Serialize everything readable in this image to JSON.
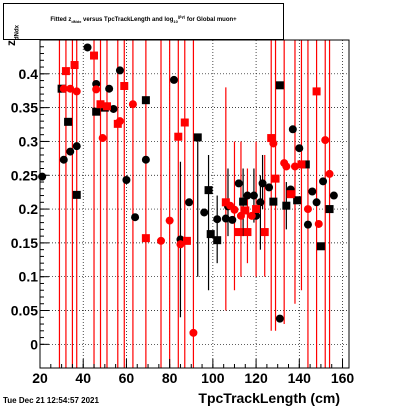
{
  "title": {
    "prefix": "Fitted",
    "z_symbol": "z",
    "z_subscript": "dNdx",
    "middle": "versus TpcTrackLength and log",
    "log_sub": "10",
    "beta_gamma": "(βγ)",
    "suffix": "for Global muon+"
  },
  "stamp": "Tue Dec 21 12:54:57 2021",
  "chart_data": {
    "type": "scatter",
    "xlabel": "TpcTrackLength (cm)",
    "ylabel": "z_{dNdx}",
    "xlim": [
      20,
      163
    ],
    "ylim": [
      -0.035,
      0.45
    ],
    "xticks": [
      20,
      40,
      60,
      80,
      100,
      120,
      140,
      160
    ],
    "yticks": [
      0,
      0.05,
      0.1,
      0.15,
      0.2,
      0.25,
      0.3,
      0.35,
      0.4
    ],
    "grid": true,
    "series": [
      {
        "color": "#000000",
        "points": [
          {
            "x": 21,
            "y": 0.248,
            "marker": "circle"
          },
          {
            "x": 30,
            "y": 0.378,
            "marker": "square"
          },
          {
            "x": 31,
            "y": 0.273,
            "marker": "circle"
          },
          {
            "x": 33,
            "y": 0.329,
            "marker": "square"
          },
          {
            "x": 34,
            "y": 0.285,
            "marker": "circle"
          },
          {
            "x": 37,
            "y": 0.293,
            "marker": "circle"
          },
          {
            "x": 37,
            "y": 0.221,
            "marker": "square"
          },
          {
            "x": 42,
            "y": 0.439,
            "marker": "circle"
          },
          {
            "x": 46,
            "y": 0.385,
            "marker": "circle"
          },
          {
            "x": 46,
            "y": 0.344,
            "marker": "square"
          },
          {
            "x": 50,
            "y": 0.35,
            "marker": "square"
          },
          {
            "x": 52,
            "y": 0.378,
            "marker": "circle"
          },
          {
            "x": 54,
            "y": 0.348,
            "marker": "circle"
          },
          {
            "x": 57,
            "y": 0.405,
            "marker": "circle"
          },
          {
            "x": 60,
            "y": 0.243,
            "marker": "circle"
          },
          {
            "x": 64,
            "y": 0.188,
            "marker": "circle"
          },
          {
            "x": 69,
            "y": 0.361,
            "marker": "square"
          },
          {
            "x": 69,
            "y": 0.273,
            "marker": "circle"
          },
          {
            "x": 82,
            "y": 0.391,
            "marker": "circle"
          },
          {
            "x": 85,
            "y": 0.155,
            "marker": "circle"
          },
          {
            "x": 89,
            "y": 0.21,
            "marker": "circle"
          },
          {
            "x": 93,
            "y": 0.306,
            "marker": "square"
          },
          {
            "x": 96,
            "y": 0.195,
            "marker": "circle"
          },
          {
            "x": 98,
            "y": 0.228,
            "marker": "square"
          },
          {
            "x": 99,
            "y": 0.163,
            "marker": "square"
          },
          {
            "x": 102,
            "y": 0.185,
            "marker": "circle"
          },
          {
            "x": 102,
            "y": 0.154,
            "marker": "square"
          },
          {
            "x": 106,
            "y": 0.186,
            "marker": "circle"
          },
          {
            "x": 107,
            "y": 0.204,
            "marker": "circle"
          },
          {
            "x": 109,
            "y": 0.184,
            "marker": "circle"
          },
          {
            "x": 112,
            "y": 0.238,
            "marker": "circle"
          },
          {
            "x": 114,
            "y": 0.211,
            "marker": "square"
          },
          {
            "x": 116,
            "y": 0.22,
            "marker": "circle"
          },
          {
            "x": 119,
            "y": 0.22,
            "marker": "circle"
          },
          {
            "x": 120,
            "y": 0.19,
            "marker": "circle"
          },
          {
            "x": 122,
            "y": 0.21,
            "marker": "circle"
          },
          {
            "x": 123,
            "y": 0.238,
            "marker": "circle"
          },
          {
            "x": 126,
            "y": 0.232,
            "marker": "circle"
          },
          {
            "x": 128,
            "y": 0.211,
            "marker": "square"
          },
          {
            "x": 131,
            "y": 0.038,
            "marker": "circle"
          },
          {
            "x": 131,
            "y": 0.383,
            "marker": "square"
          },
          {
            "x": 134,
            "y": 0.205,
            "marker": "square"
          },
          {
            "x": 136,
            "y": 0.229,
            "marker": "circle"
          },
          {
            "x": 137,
            "y": 0.318,
            "marker": "circle"
          },
          {
            "x": 139,
            "y": 0.213,
            "marker": "square"
          },
          {
            "x": 140,
            "y": 0.29,
            "marker": "circle"
          },
          {
            "x": 143,
            "y": 0.266,
            "marker": "square"
          },
          {
            "x": 144,
            "y": 0.177,
            "marker": "circle"
          },
          {
            "x": 146,
            "y": 0.226,
            "marker": "circle"
          },
          {
            "x": 148,
            "y": 0.21,
            "marker": "circle"
          },
          {
            "x": 150,
            "y": 0.145,
            "marker": "square"
          },
          {
            "x": 151,
            "y": 0.241,
            "marker": "circle"
          },
          {
            "x": 154,
            "y": 0.2,
            "marker": "square"
          },
          {
            "x": 156,
            "y": 0.22,
            "marker": "circle"
          }
        ],
        "errorbars": [
          {
            "x": 85,
            "lo": 0.04,
            "hi": 0.27
          },
          {
            "x": 93,
            "lo": 0.1,
            "hi": 0.31
          },
          {
            "x": 98,
            "lo": 0.08,
            "hi": 0.28
          },
          {
            "x": 102,
            "lo": 0.12,
            "hi": 0.22
          },
          {
            "x": 107,
            "lo": 0.16,
            "hi": 0.26
          },
          {
            "x": 114,
            "lo": 0.16,
            "hi": 0.26
          },
          {
            "x": 119,
            "lo": 0.18,
            "hi": 0.26
          },
          {
            "x": 122,
            "lo": 0.14,
            "hi": 0.25
          },
          {
            "x": 123,
            "lo": 0.2,
            "hi": 0.28
          },
          {
            "x": 134,
            "lo": 0.17,
            "hi": 0.24
          }
        ]
      },
      {
        "color": "#ff0000",
        "points": [
          {
            "x": 31,
            "y": 0.378,
            "marker": "circle"
          },
          {
            "x": 32,
            "y": 0.404,
            "marker": "square"
          },
          {
            "x": 34,
            "y": 0.378,
            "marker": "circle"
          },
          {
            "x": 36,
            "y": 0.413,
            "marker": "square"
          },
          {
            "x": 37,
            "y": 0.374,
            "marker": "circle"
          },
          {
            "x": 45,
            "y": 0.427,
            "marker": "square"
          },
          {
            "x": 46,
            "y": 0.377,
            "marker": "circle"
          },
          {
            "x": 48,
            "y": 0.355,
            "marker": "square"
          },
          {
            "x": 49,
            "y": 0.305,
            "marker": "circle"
          },
          {
            "x": 51,
            "y": 0.352,
            "marker": "square"
          },
          {
            "x": 56,
            "y": 0.326,
            "marker": "square"
          },
          {
            "x": 57,
            "y": 0.33,
            "marker": "circle"
          },
          {
            "x": 59,
            "y": 0.382,
            "marker": "square"
          },
          {
            "x": 63,
            "y": 0.355,
            "marker": "circle"
          },
          {
            "x": 69,
            "y": 0.157,
            "marker": "square"
          },
          {
            "x": 76,
            "y": 0.153,
            "marker": "circle"
          },
          {
            "x": 80,
            "y": 0.183,
            "marker": "circle"
          },
          {
            "x": 84,
            "y": 0.307,
            "marker": "square"
          },
          {
            "x": 85,
            "y": 0.148,
            "marker": "circle"
          },
          {
            "x": 87,
            "y": 0.328,
            "marker": "square"
          },
          {
            "x": 88,
            "y": 0.153,
            "marker": "square"
          },
          {
            "x": 91,
            "y": 0.017,
            "marker": "circle"
          },
          {
            "x": 106,
            "y": 0.21,
            "marker": "square"
          },
          {
            "x": 108,
            "y": 0.205,
            "marker": "circle"
          },
          {
            "x": 110,
            "y": 0.199,
            "marker": "circle"
          },
          {
            "x": 112,
            "y": 0.166,
            "marker": "square"
          },
          {
            "x": 113,
            "y": 0.19,
            "marker": "circle"
          },
          {
            "x": 115,
            "y": 0.198,
            "marker": "square"
          },
          {
            "x": 116,
            "y": 0.166,
            "marker": "square"
          },
          {
            "x": 118,
            "y": 0.19,
            "marker": "circle"
          },
          {
            "x": 120,
            "y": 0.2,
            "marker": "square"
          },
          {
            "x": 124,
            "y": 0.166,
            "marker": "square"
          },
          {
            "x": 127,
            "y": 0.305,
            "marker": "square"
          },
          {
            "x": 128,
            "y": 0.297,
            "marker": "circle"
          },
          {
            "x": 129,
            "y": 0.245,
            "marker": "square"
          },
          {
            "x": 133,
            "y": 0.268,
            "marker": "circle"
          },
          {
            "x": 134,
            "y": 0.263,
            "marker": "circle"
          },
          {
            "x": 136,
            "y": 0.222,
            "marker": "square"
          },
          {
            "x": 138,
            "y": 0.263,
            "marker": "circle"
          },
          {
            "x": 141,
            "y": 0.266,
            "marker": "square"
          },
          {
            "x": 144,
            "y": 0.2,
            "marker": "circle"
          },
          {
            "x": 148,
            "y": 0.374,
            "marker": "square"
          },
          {
            "x": 149,
            "y": 0.178,
            "marker": "circle"
          },
          {
            "x": 152,
            "y": 0.302,
            "marker": "circle"
          },
          {
            "x": 154,
            "y": 0.252,
            "marker": "circle"
          }
        ],
        "errorbars": [
          {
            "x": 29,
            "lo": -0.035,
            "hi": 0.45
          },
          {
            "x": 32,
            "lo": -0.035,
            "hi": 0.45
          },
          {
            "x": 35,
            "lo": -0.035,
            "hi": 0.45
          },
          {
            "x": 37,
            "lo": -0.035,
            "hi": 0.45
          },
          {
            "x": 45,
            "lo": -0.035,
            "hi": 0.45
          },
          {
            "x": 48,
            "lo": -0.035,
            "hi": 0.45
          },
          {
            "x": 51,
            "lo": -0.035,
            "hi": 0.45
          },
          {
            "x": 56,
            "lo": -0.035,
            "hi": 0.45
          },
          {
            "x": 59,
            "lo": -0.035,
            "hi": 0.45
          },
          {
            "x": 63,
            "lo": -0.035,
            "hi": 0.45
          },
          {
            "x": 69,
            "lo": -0.035,
            "hi": 0.45
          },
          {
            "x": 76,
            "lo": -0.035,
            "hi": 0.45
          },
          {
            "x": 80,
            "lo": -0.035,
            "hi": 0.45
          },
          {
            "x": 84,
            "lo": -0.035,
            "hi": 0.45
          },
          {
            "x": 87,
            "lo": -0.035,
            "hi": 0.45
          },
          {
            "x": 91,
            "lo": -0.035,
            "hi": 0.45
          },
          {
            "x": 106,
            "lo": 0.05,
            "hi": 0.38
          },
          {
            "x": 110,
            "lo": 0.08,
            "hi": 0.3
          },
          {
            "x": 113,
            "lo": 0.1,
            "hi": 0.3
          },
          {
            "x": 116,
            "lo": 0.12,
            "hi": 0.26
          },
          {
            "x": 120,
            "lo": 0.1,
            "hi": 0.3
          },
          {
            "x": 124,
            "lo": 0.1,
            "hi": 0.28
          },
          {
            "x": 127,
            "lo": 0.02,
            "hi": 0.45
          },
          {
            "x": 129,
            "lo": 0.02,
            "hi": 0.45
          },
          {
            "x": 133,
            "lo": 0.03,
            "hi": 0.45
          },
          {
            "x": 138,
            "lo": 0.06,
            "hi": 0.45
          },
          {
            "x": 141,
            "lo": 0.08,
            "hi": 0.45
          },
          {
            "x": 144,
            "lo": -0.035,
            "hi": 0.45
          },
          {
            "x": 148,
            "lo": -0.035,
            "hi": 0.45
          },
          {
            "x": 152,
            "lo": -0.035,
            "hi": 0.45
          },
          {
            "x": 154,
            "lo": -0.035,
            "hi": 0.45
          }
        ]
      }
    ]
  }
}
